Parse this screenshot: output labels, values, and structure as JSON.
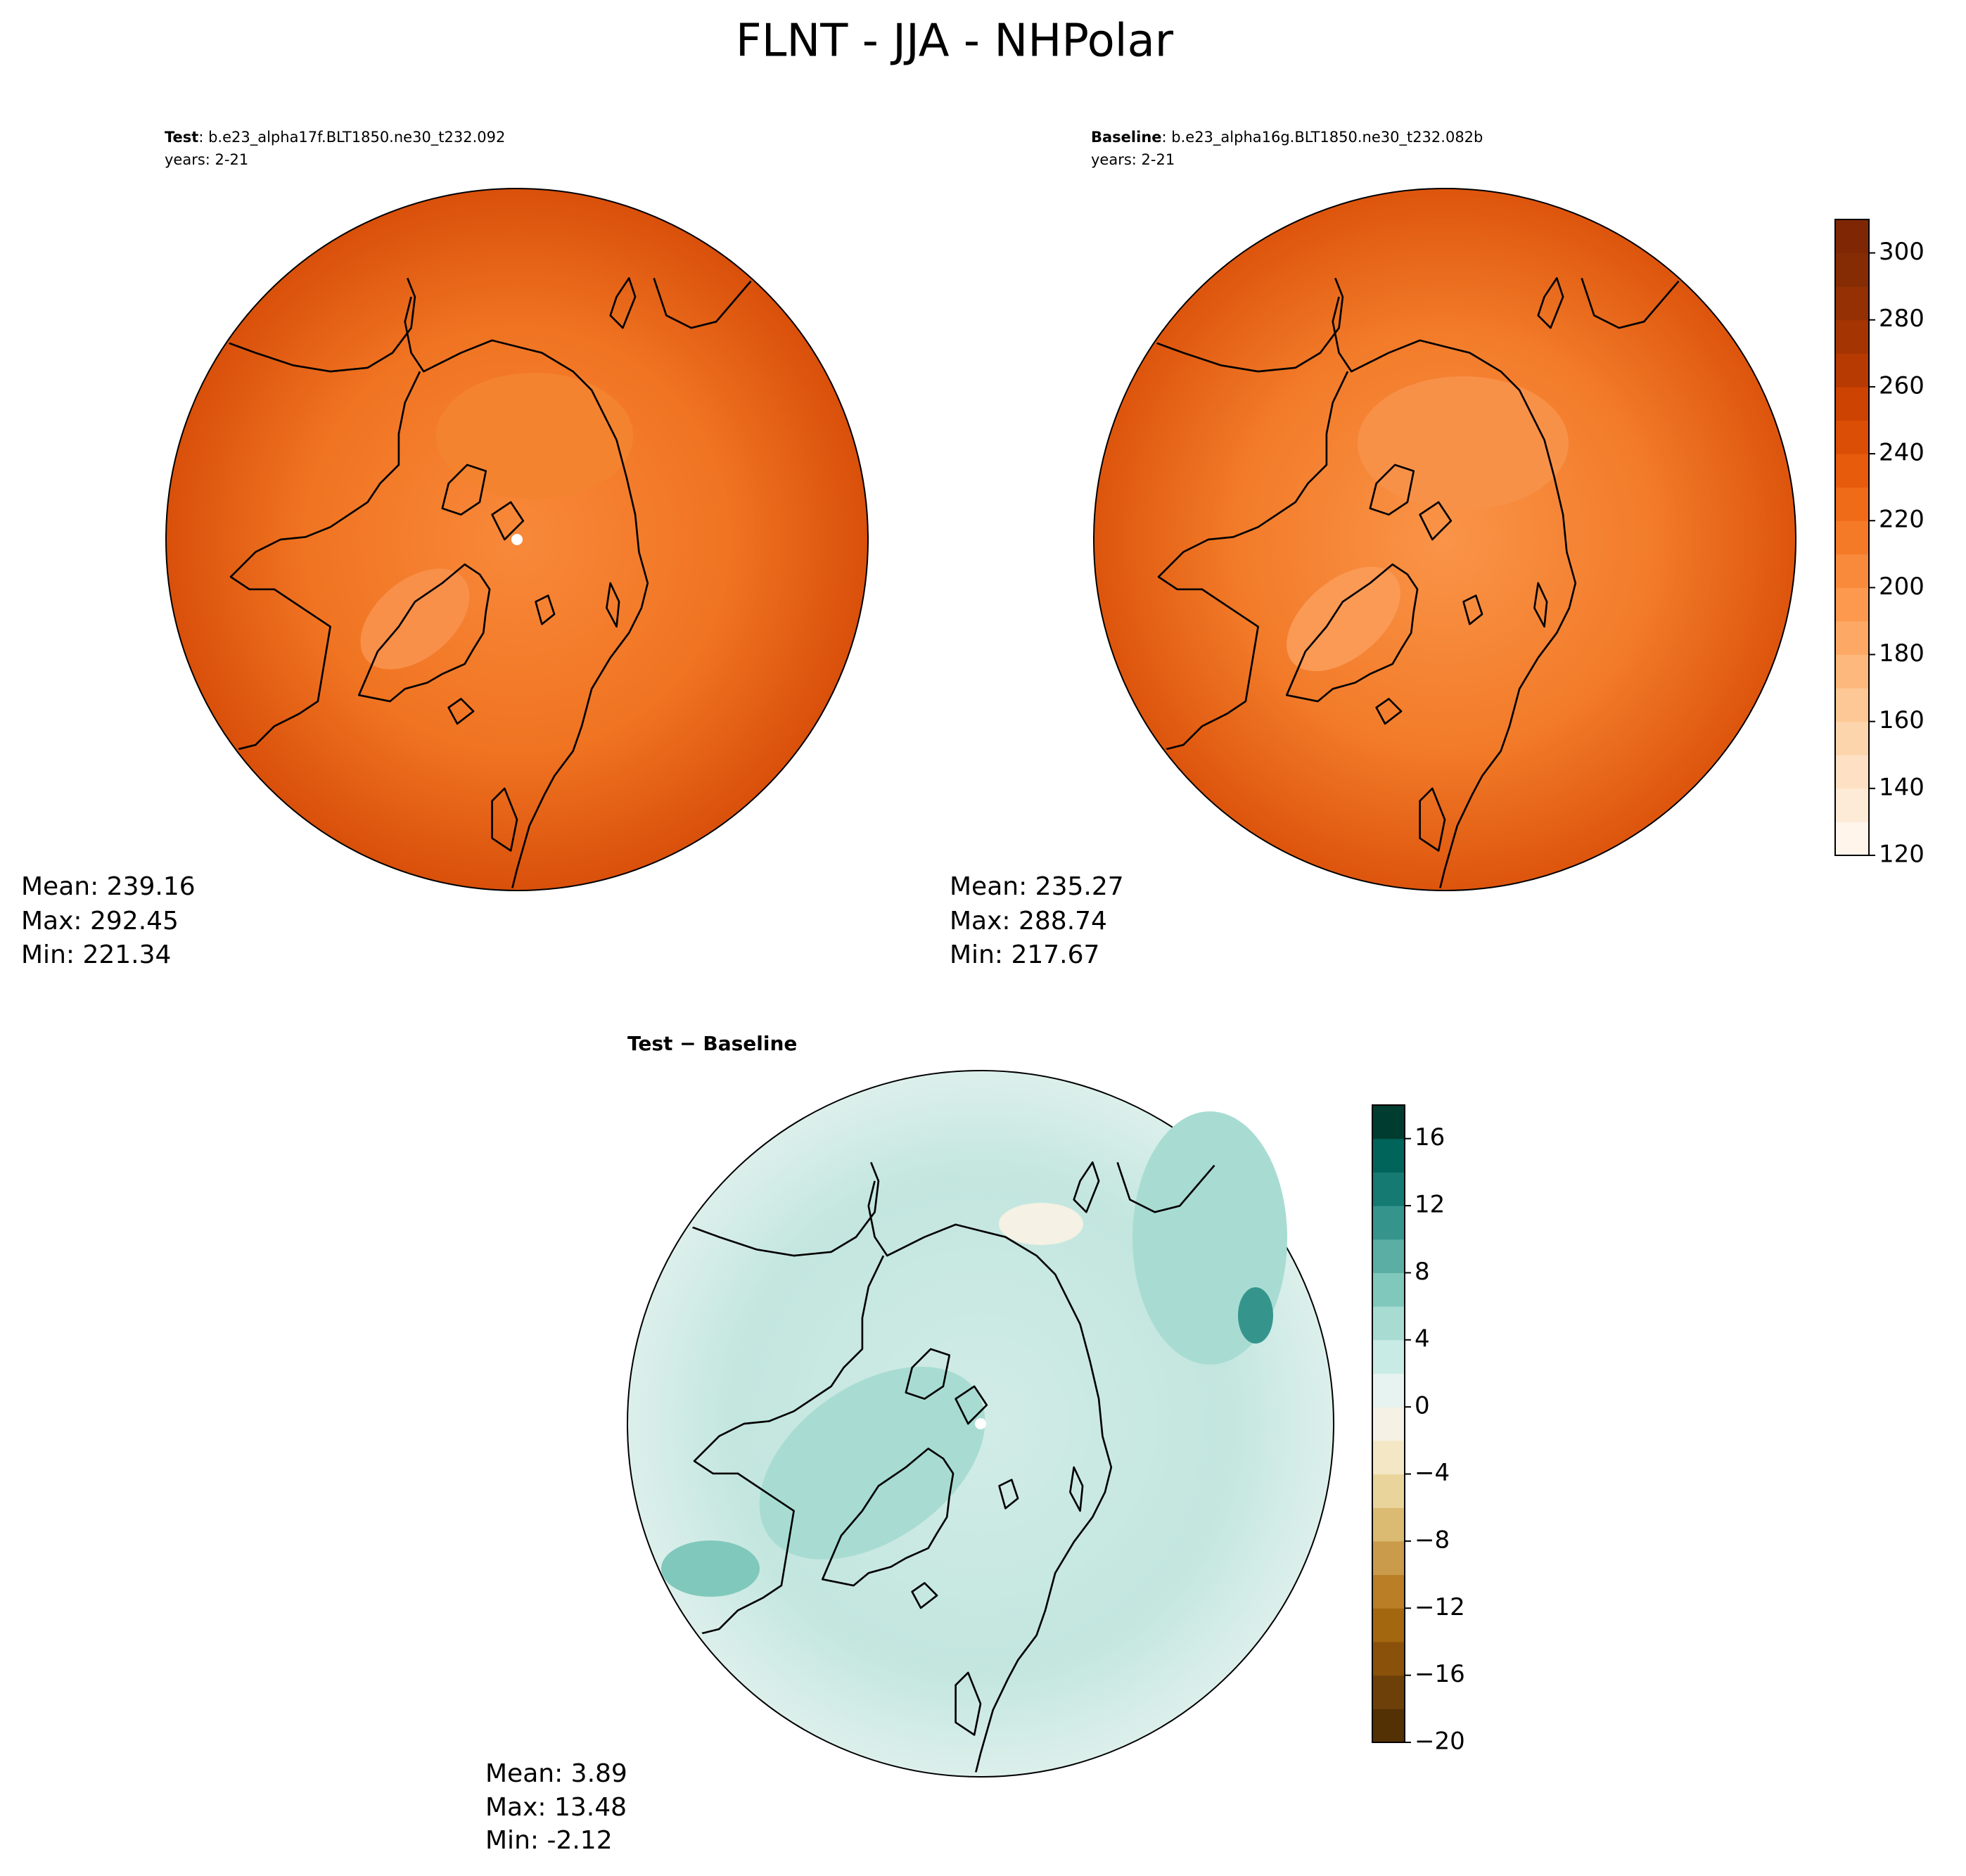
{
  "title": "FLNT - JJA - NHPolar",
  "panels": [
    {
      "label": "Test",
      "case": ": b.e23_alpha17f.BLT1850.ne30_t232.092",
      "years": "years: 2-21",
      "stats": [
        "Mean: 239.16",
        "Max: 292.45",
        "Min: 221.34"
      ]
    },
    {
      "label": "Baseline",
      "case": ": b.e23_alpha16g.BLT1850.ne30_t232.082b",
      "years": "years: 2-21",
      "stats": [
        "Mean: 235.27",
        "Max: 288.74",
        "Min: 217.67"
      ]
    },
    {
      "label": "Test − Baseline",
      "stats": [
        "Mean:  3.89",
        "Max: 13.48",
        "Min: -2.12"
      ]
    }
  ],
  "colorbars": [
    {
      "lim": [
        120,
        310
      ],
      "ticks": [
        120,
        140,
        160,
        180,
        200,
        220,
        240,
        260,
        280,
        300
      ],
      "colors": [
        "#fff5eb",
        "#feebd7",
        "#fee1c4",
        "#fdd5ad",
        "#fdc895",
        "#fdb97d",
        "#fda965",
        "#fd994f",
        "#fa8a3b",
        "#f57a28",
        "#ef6b18",
        "#e65c0c",
        "#da4f05",
        "#cc4302",
        "#b73a02",
        "#a53403",
        "#943003",
        "#862c04",
        "#7f2704"
      ]
    },
    {
      "lim": [
        -20,
        18
      ],
      "ticks": [
        {
          "value": -20,
          "label": "−20"
        },
        {
          "value": -16,
          "label": "−16"
        },
        {
          "value": -12,
          "label": "−12"
        },
        {
          "value": -8,
          "label": "−8"
        },
        {
          "value": -4,
          "label": "−4"
        },
        0,
        4,
        8,
        12,
        16
      ],
      "colors": [
        "#543005",
        "#6e4009",
        "#8a510b",
        "#a3670f",
        "#b97e26",
        "#c99b4a",
        "#dbbb72",
        "#e9d59c",
        "#f4e7c5",
        "#f5f1e4",
        "#e6f3f0",
        "#c9ebe5",
        "#a8dcd3",
        "#80c8bc",
        "#5aaea3",
        "#35958c",
        "#147a72",
        "#01645a",
        "#003c30"
      ]
    }
  ]
}
